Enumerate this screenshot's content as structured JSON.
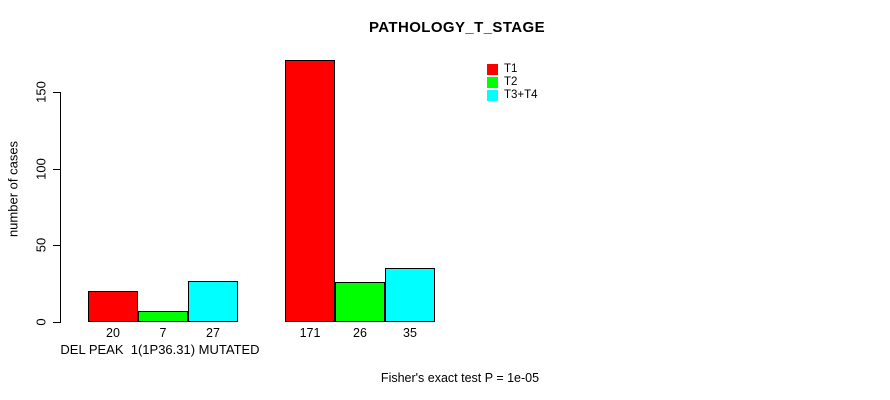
{
  "chart_data": {
    "type": "bar",
    "title": "PATHOLOGY_T_STAGE",
    "ylabel": "number of cases",
    "xlabel": "",
    "ylim": [
      0,
      150
    ],
    "yticks": [
      0,
      50,
      100,
      150
    ],
    "grid": false,
    "legend_position": "top-right",
    "series": [
      {
        "name": "T1",
        "color": "#FF0000"
      },
      {
        "name": "T2",
        "color": "#00FF00"
      },
      {
        "name": "T3+T4",
        "color": "#00FFFF"
      }
    ],
    "groups": [
      {
        "label": "DEL PEAK  1(1P36.31) MUTATED",
        "values": [
          20,
          7,
          27
        ],
        "value_labels": [
          "20",
          "7",
          "27"
        ]
      },
      {
        "label": "",
        "values": [
          171,
          26,
          35
        ],
        "value_labels": [
          "171",
          "26",
          "35"
        ]
      }
    ],
    "annotation": "Fisher's exact test P = 1e-05"
  }
}
